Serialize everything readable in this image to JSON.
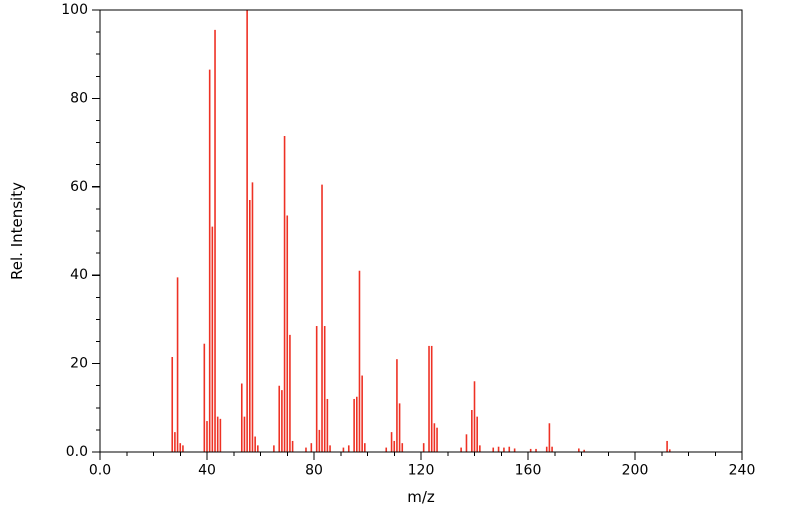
{
  "figure": {
    "background": "#ffffff"
  },
  "chart_data": {
    "type": "bar",
    "subtype": "mass-spectrum-stick-plot",
    "title": "",
    "xlabel": "m/z",
    "ylabel": "Rel. Intensity",
    "xlim": [
      0,
      240
    ],
    "ylim": [
      0,
      100
    ],
    "grid": false,
    "legend": "none",
    "bar_color": "#ee3124",
    "axis_color": "#000000",
    "x_ticks": {
      "values": [
        0,
        40,
        80,
        120,
        160,
        200,
        240
      ],
      "labels": [
        "0.0",
        "40",
        "80",
        "120",
        "160",
        "200",
        "240"
      ]
    },
    "y_ticks": {
      "values": [
        0,
        20,
        40,
        60,
        80,
        100
      ],
      "labels": [
        "0.0",
        "20",
        "40",
        "60",
        "80",
        "100"
      ]
    },
    "x_minor_step": 10,
    "y_minor_step": 5,
    "peaks": [
      [
        27,
        21.5
      ],
      [
        28,
        4.5
      ],
      [
        29,
        39.5
      ],
      [
        30,
        2.0
      ],
      [
        31,
        1.5
      ],
      [
        39,
        24.5
      ],
      [
        40,
        7.0
      ],
      [
        41,
        86.5
      ],
      [
        42,
        51.0
      ],
      [
        43,
        95.5
      ],
      [
        44,
        8.0
      ],
      [
        45,
        7.5
      ],
      [
        53,
        15.5
      ],
      [
        54,
        8.0
      ],
      [
        55,
        100.0
      ],
      [
        56,
        57.0
      ],
      [
        57,
        61.0
      ],
      [
        58,
        3.5
      ],
      [
        59,
        1.5
      ],
      [
        65,
        1.5
      ],
      [
        67,
        15.0
      ],
      [
        68,
        14.0
      ],
      [
        69,
        71.5
      ],
      [
        70,
        53.5
      ],
      [
        71,
        26.5
      ],
      [
        72,
        2.5
      ],
      [
        77,
        1.0
      ],
      [
        79,
        2.0
      ],
      [
        81,
        28.5
      ],
      [
        82,
        5.0
      ],
      [
        83,
        60.5
      ],
      [
        84,
        28.5
      ],
      [
        85,
        12.0
      ],
      [
        86,
        1.5
      ],
      [
        91,
        1.0
      ],
      [
        93,
        1.5
      ],
      [
        95,
        12.0
      ],
      [
        96,
        12.5
      ],
      [
        97,
        41.0
      ],
      [
        98,
        17.3
      ],
      [
        99,
        2.0
      ],
      [
        107,
        1.0
      ],
      [
        109,
        4.5
      ],
      [
        110,
        2.5
      ],
      [
        111,
        21.0
      ],
      [
        112,
        11.0
      ],
      [
        113,
        2.0
      ],
      [
        121,
        2.0
      ],
      [
        123,
        24.0
      ],
      [
        124,
        24.0
      ],
      [
        125,
        6.5
      ],
      [
        126,
        5.5
      ],
      [
        135,
        1.0
      ],
      [
        137,
        4.0
      ],
      [
        139,
        9.5
      ],
      [
        140,
        16.0
      ],
      [
        141,
        8.0
      ],
      [
        142,
        1.5
      ],
      [
        147,
        1.0
      ],
      [
        149,
        1.2
      ],
      [
        151,
        1.0
      ],
      [
        153,
        1.2
      ],
      [
        155,
        0.8
      ],
      [
        161,
        0.7
      ],
      [
        163,
        0.7
      ],
      [
        167,
        1.2
      ],
      [
        168,
        6.5
      ],
      [
        169,
        1.2
      ],
      [
        179,
        0.8
      ],
      [
        181,
        0.5
      ],
      [
        212,
        2.5
      ],
      [
        213,
        0.6
      ]
    ]
  }
}
